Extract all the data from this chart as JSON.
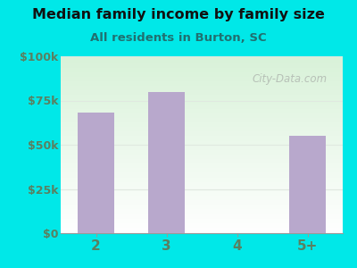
{
  "title": "Median family income by family size",
  "subtitle": "All residents in Burton, SC",
  "categories": [
    "2",
    "3",
    "4",
    "5+"
  ],
  "values": [
    68000,
    80000,
    0,
    55000
  ],
  "bar_color": "#b8a8cc",
  "background_color": "#00e8e8",
  "plot_bg_top_left": "#d8f0d8",
  "plot_bg_bottom_right": "#f5fff5",
  "plot_bg_white": "#ffffff",
  "axis_label_color": "#5a8060",
  "title_color": "#111111",
  "subtitle_color": "#207070",
  "ylim": [
    0,
    100000
  ],
  "yticks": [
    0,
    25000,
    50000,
    75000,
    100000
  ],
  "ytick_labels": [
    "$0",
    "$25k",
    "$50k",
    "$75k",
    "$100k"
  ],
  "watermark": "City-Data.com",
  "watermark_color": "#b0b8b0",
  "grid_color": "#e0e8e0"
}
